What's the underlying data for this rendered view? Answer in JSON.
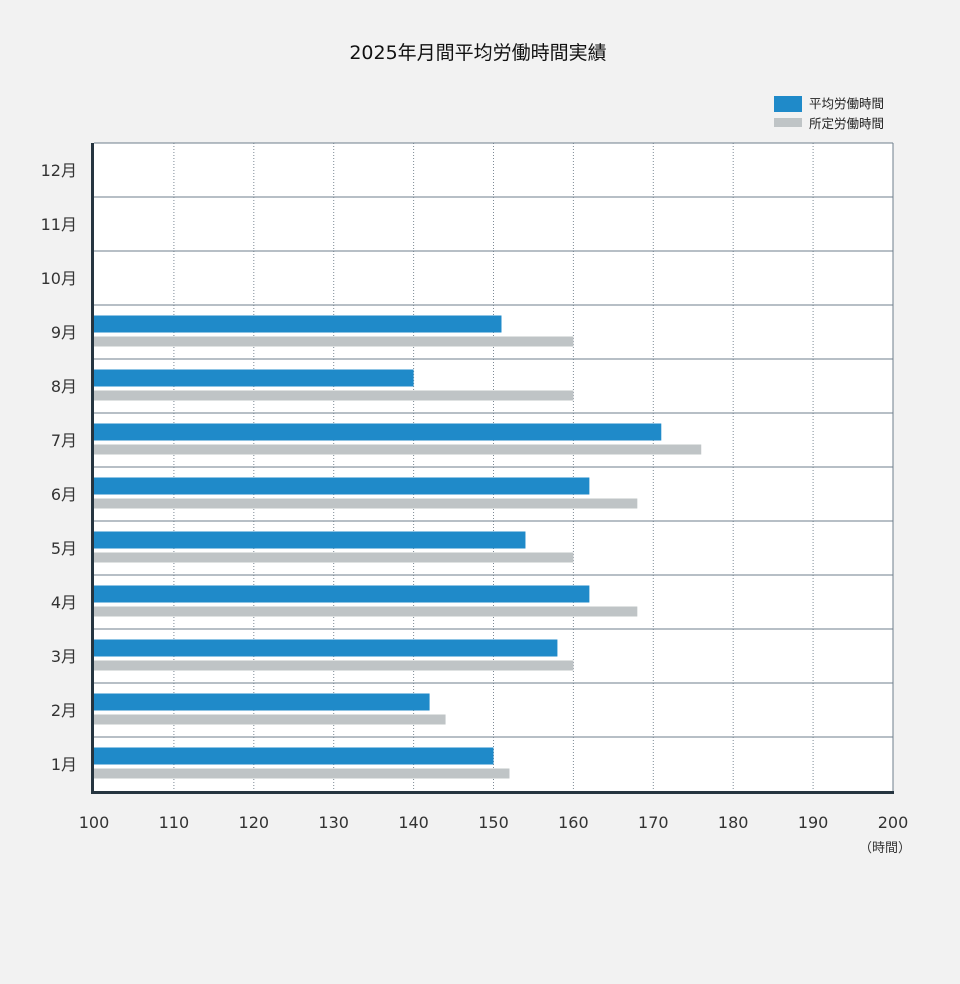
{
  "chart_data": {
    "type": "bar",
    "orientation": "horizontal",
    "title": "2025年月間平均労働時間実績",
    "categories": [
      "1月",
      "2月",
      "3月",
      "4月",
      "5月",
      "6月",
      "7月",
      "8月",
      "9月",
      "10月",
      "11月",
      "12月"
    ],
    "series": [
      {
        "name": "平均労働時間",
        "color": "#1f8ac9",
        "values": [
          150,
          142,
          158,
          162,
          154,
          162,
          171,
          140,
          151,
          null,
          null,
          null
        ]
      },
      {
        "name": "所定労働時間",
        "color": "#bfc4c6",
        "values": [
          152,
          144,
          160,
          168,
          160,
          168,
          176,
          160,
          160,
          null,
          null,
          null
        ]
      }
    ],
    "xlim": [
      100,
      200
    ],
    "x_ticks": [
      100,
      110,
      120,
      130,
      140,
      150,
      160,
      170,
      180,
      190,
      200
    ],
    "x_unit_label": "（時間）",
    "grid": true,
    "legend_position": "top-right"
  }
}
